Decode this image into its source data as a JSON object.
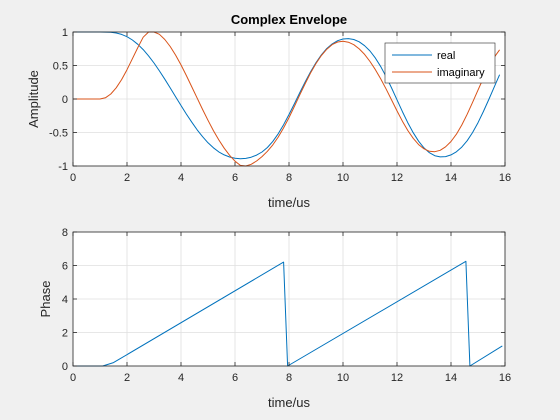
{
  "chart_data": [
    {
      "type": "line",
      "title": "Complex Envelope",
      "xlabel": "time/us",
      "ylabel": "Amplitude",
      "xlim": [
        0,
        16
      ],
      "ylim": [
        -1,
        1
      ],
      "xticks": [
        0,
        2,
        4,
        6,
        8,
        10,
        12,
        14,
        16
      ],
      "yticks": [
        -1,
        -0.5,
        0,
        0.5,
        1
      ],
      "grid": true,
      "legend_position": "top-right",
      "series": [
        {
          "name": "real",
          "color": "#0072BD",
          "x": [
            0,
            1.0,
            1.2,
            1.4,
            1.6,
            1.8,
            2.0,
            2.2,
            2.4,
            2.6,
            2.8,
            3.0,
            3.2,
            3.4,
            3.6,
            3.8,
            4.0,
            4.2,
            4.4,
            4.6,
            4.8,
            5.0,
            5.2,
            5.4,
            5.6,
            5.8,
            6.0,
            6.2,
            6.4,
            6.6,
            6.8,
            7.0,
            7.2,
            7.4,
            7.6,
            7.8,
            8.0,
            8.2,
            8.4,
            8.6,
            8.8,
            9.0,
            9.2,
            9.4,
            9.6,
            9.8,
            10.0,
            10.2,
            10.4,
            10.6,
            10.8,
            11.0,
            11.2,
            11.4,
            11.6,
            11.8,
            12.0,
            12.2,
            12.4,
            12.6,
            12.8,
            13.0,
            13.2,
            13.4,
            13.6,
            13.8,
            14.0,
            14.2,
            14.4,
            14.6,
            14.8,
            15.0,
            15.2,
            15.4,
            15.6,
            15.8
          ],
          "y": [
            1,
            1,
            0.999,
            0.995,
            0.985,
            0.964,
            0.93,
            0.881,
            0.817,
            0.737,
            0.644,
            0.537,
            0.42,
            0.296,
            0.166,
            0.034,
            -0.097,
            -0.225,
            -0.347,
            -0.461,
            -0.563,
            -0.653,
            -0.728,
            -0.789,
            -0.834,
            -0.866,
            -0.884,
            -0.891,
            -0.886,
            -0.869,
            -0.838,
            -0.791,
            -0.724,
            -0.633,
            -0.519,
            -0.383,
            -0.231,
            -0.07,
            0.095,
            0.257,
            0.408,
            0.544,
            0.66,
            0.753,
            0.822,
            0.87,
            0.896,
            0.902,
            0.888,
            0.853,
            0.796,
            0.716,
            0.611,
            0.482,
            0.331,
            0.164,
            -0.012,
            -0.188,
            -0.354,
            -0.503,
            -0.63,
            -0.73,
            -0.802,
            -0.846,
            -0.864,
            -0.86,
            -0.834,
            -0.788,
            -0.718,
            -0.622,
            -0.5,
            -0.353,
            -0.187,
            -0.008,
            0.178,
            0.362
          ]
        },
        {
          "name": "imaginary",
          "color": "#D95319",
          "x": [
            0,
            1.0,
            1.2,
            1.4,
            1.6,
            1.8,
            2.0,
            2.2,
            2.4,
            2.6,
            2.8,
            3.0,
            3.2,
            3.4,
            3.6,
            3.8,
            4.0,
            4.2,
            4.4,
            4.6,
            4.8,
            5.0,
            5.2,
            5.4,
            5.6,
            5.8,
            6.0,
            6.2,
            6.4,
            6.6,
            6.8,
            7.0,
            7.2,
            7.4,
            7.6,
            7.8,
            8.0,
            8.2,
            8.4,
            8.6,
            8.8,
            9.0,
            9.2,
            9.4,
            9.6,
            9.8,
            10.0,
            10.2,
            10.4,
            10.6,
            10.8,
            11.0,
            11.2,
            11.4,
            11.6,
            11.8,
            12.0,
            12.2,
            12.4,
            12.6,
            12.8,
            13.0,
            13.2,
            13.4,
            13.6,
            13.8,
            14.0,
            14.2,
            14.4,
            14.6,
            14.8,
            15.0,
            15.2,
            15.4,
            15.6,
            15.8
          ],
          "y": [
            0,
            0,
            0.018,
            0.075,
            0.167,
            0.29,
            0.437,
            0.601,
            0.767,
            0.922,
            1.0,
            1.0,
            0.965,
            0.888,
            0.783,
            0.655,
            0.509,
            0.349,
            0.181,
            0.012,
            -0.156,
            -0.318,
            -0.471,
            -0.611,
            -0.735,
            -0.841,
            -0.929,
            -0.991,
            -1.0,
            -0.975,
            -0.925,
            -0.86,
            -0.781,
            -0.685,
            -0.569,
            -0.432,
            -0.277,
            -0.11,
            0.062,
            0.23,
            0.389,
            0.53,
            0.65,
            0.744,
            0.812,
            0.851,
            0.862,
            0.848,
            0.81,
            0.748,
            0.665,
            0.56,
            0.437,
            0.298,
            0.146,
            -0.015,
            -0.177,
            -0.331,
            -0.47,
            -0.587,
            -0.68,
            -0.744,
            -0.78,
            -0.787,
            -0.765,
            -0.714,
            -0.635,
            -0.526,
            -0.388,
            -0.227,
            -0.05,
            0.133,
            0.313,
            0.48,
            0.623,
            0.734
          ]
        }
      ]
    },
    {
      "type": "line",
      "title": "",
      "xlabel": "time/us",
      "ylabel": "Phase",
      "xlim": [
        0,
        16
      ],
      "ylim": [
        0,
        8
      ],
      "xticks": [
        0,
        2,
        4,
        6,
        8,
        10,
        12,
        14,
        16
      ],
      "yticks": [
        0,
        2,
        4,
        6,
        8
      ],
      "grid": true,
      "series": [
        {
          "color": "#0072BD",
          "x": [
            0,
            1.1,
            1.5,
            7.8,
            7.95,
            14.55,
            14.7,
            15.9
          ],
          "y": [
            0,
            0,
            0.2,
            6.2,
            0,
            6.25,
            0,
            1.2
          ]
        }
      ]
    }
  ]
}
